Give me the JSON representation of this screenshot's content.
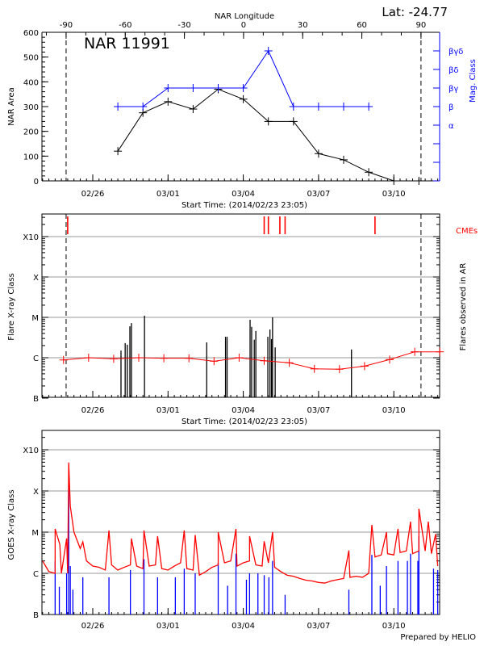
{
  "footer": "Prepared by HELIO",
  "colors": {
    "area": "#000000",
    "mag_class": "#0000ff",
    "cme": "#ff0000",
    "goes_long": "#ff0000",
    "goes_short": "#0000ff",
    "flare": "#000000",
    "background": "#ff0000",
    "grid": "#999999"
  },
  "chart_data": [
    {
      "type": "line",
      "title": "NAR 11991",
      "subtitle": "Lat: -24.77",
      "top_xlabel": "NAR Longitude",
      "top_xticks": [
        "-90",
        "-60",
        "-30",
        "0",
        "30",
        "60",
        "90"
      ],
      "xlabel": "Start Time: (2014/02/23 23:05)",
      "xticks": [
        "02/26",
        "03/01",
        "03/04",
        "03/07",
        "03/10"
      ],
      "limb_dates": [
        "2014-02-24 22:30",
        "2014-03-11 02:00"
      ],
      "ylabel": "NAR Area",
      "ylim": [
        0,
        600
      ],
      "yticks": [
        "0",
        "100",
        "200",
        "300",
        "400",
        "500",
        "600"
      ],
      "y2label": "Mag. Class",
      "y2ticks": [
        "",
        "",
        "",
        "α",
        "β",
        "βγ",
        "βδ",
        "βγδ"
      ],
      "area": {
        "x": [
          "2014-02-27",
          "2014-02-28",
          "2014-03-01",
          "2014-03-02",
          "2014-03-03",
          "2014-03-04",
          "2014-03-05",
          "2014-03-06",
          "2014-03-07",
          "2014-03-08",
          "2014-03-09",
          "2014-03-10",
          "2014-03-11"
        ],
        "values": [
          120,
          275,
          320,
          290,
          370,
          330,
          240,
          240,
          110,
          85,
          35,
          0,
          0
        ]
      },
      "mag_class": {
        "x": [
          "2014-02-27",
          "2014-02-28",
          "2014-03-01",
          "2014-03-02",
          "2014-03-03",
          "2014-03-04",
          "2014-03-05",
          "2014-03-06",
          "2014-03-07",
          "2014-03-08",
          "2014-03-09"
        ],
        "values": [
          "β",
          "β",
          "βγ",
          "βγ",
          "βγ",
          "βγ",
          "βγδ",
          "β",
          "β",
          "β",
          "β"
        ]
      }
    },
    {
      "type": "bar",
      "xlabel": "Start Time: (2014/02/23 23:05)",
      "xticks": [
        "02/26",
        "03/01",
        "03/04",
        "03/07",
        "03/10"
      ],
      "ylabel": "Flare X-ray Class",
      "y2label": "Flares observed in AR",
      "cme_label": "CMEs",
      "yticks": [
        {
          "label": "B",
          "class": "B1"
        },
        {
          "label": "C",
          "class": "C1"
        },
        {
          "label": "M",
          "class": "M1"
        },
        {
          "label": "X",
          "class": "X1"
        },
        {
          "label": "X10",
          "class": "X10"
        }
      ],
      "grid": true,
      "flares": [
        [
          "2014-02-27 03:00",
          "C1.5"
        ],
        [
          "2014-02-27 07:00",
          "C2.3"
        ],
        [
          "2014-02-27 09:00",
          "C2.1"
        ],
        [
          "2014-02-27 11:30",
          "C6.0"
        ],
        [
          "2014-02-27 13:00",
          "C7.2"
        ],
        [
          "2014-02-28 01:30",
          "M1.1"
        ],
        [
          "2014-03-02 13:00",
          "C2.4"
        ],
        [
          "2014-03-03 07:00",
          "C3.3"
        ],
        [
          "2014-03-03 08:30",
          "C3.3"
        ],
        [
          "2014-03-04 06:30",
          "C8.7"
        ],
        [
          "2014-03-04 08:00",
          "C5.8"
        ],
        [
          "2014-03-04 10:30",
          "C2.8"
        ],
        [
          "2014-03-04 12:00",
          "C4.6"
        ],
        [
          "2014-03-04 23:30",
          "C3.3"
        ],
        [
          "2014-03-05 01:30",
          "C5.0"
        ],
        [
          "2014-03-05 03:00",
          "C2.9"
        ],
        [
          "2014-03-05 04:00",
          "M1.0"
        ],
        [
          "2014-03-05 06:30",
          "C1.8"
        ],
        [
          "2014-03-08 07:30",
          "C1.6"
        ]
      ],
      "cmes": [
        "2014-02-25 00:00",
        "2014-03-04 20:00",
        "2014-03-05 00:00",
        "2014-03-05 11:00",
        "2014-03-05 16:00",
        "2014-03-09 06:00"
      ],
      "background": {
        "x": [
          "2014-02-24 20:00",
          "2014-02-25 20:00",
          "2014-02-26 20:00",
          "2014-02-27 20:00",
          "2014-02-28 20:00",
          "2014-03-01 20:00",
          "2014-03-02 20:00",
          "2014-03-03 20:00",
          "2014-03-04 20:00",
          "2014-03-05 20:00",
          "2014-03-06 20:00",
          "2014-03-07 20:00",
          "2014-03-08 20:00",
          "2014-03-09 20:00",
          "2014-03-10 20:00",
          "2014-03-11 20:00"
        ],
        "values": [
          "B8.8",
          "C1.0",
          "B9.4",
          "C1.0",
          "B9.7",
          "B9.7",
          "B8.2",
          "C1.0",
          "B8.4",
          "B7.5",
          "B5.3",
          "B5.2",
          "B6.2",
          "B9.0",
          "C1.4",
          "C1.4"
        ]
      }
    },
    {
      "type": "line",
      "xticks": [
        "02/26",
        "03/01",
        "03/04",
        "03/07",
        "03/10"
      ],
      "ylabel": "GOES X-ray Class",
      "yticks": [
        {
          "label": "B",
          "class": "B1"
        },
        {
          "label": "C",
          "class": "C1"
        },
        {
          "label": "M",
          "class": "M1"
        },
        {
          "label": "X",
          "class": "X1"
        },
        {
          "label": "X10",
          "class": "X10"
        }
      ],
      "grid": true,
      "long_channel": {
        "start": "2014-02-24 00:00",
        "step_hours": 6,
        "values": [
          "C2.0",
          "C1.1",
          "C1.0",
          "C1.0",
          "C1.0",
          "M1.0",
          "C4.0",
          "C2.0",
          "C1.5",
          "C1.4",
          "C1.2",
          "C1.6",
          "C1.2",
          "C1.4",
          "C1.6",
          "C1.5",
          "C1.3",
          "C1.5",
          "C1.6",
          "C1.3",
          "C1.2",
          "C1.5",
          "C1.8",
          "C1.3",
          "C1.2",
          "B9.0",
          "C1.1",
          "C1.4",
          "C1.6",
          "C1.8",
          "C2.0",
          "C1.5",
          "C1.8",
          "C2.0",
          "C1.6",
          "C1.5",
          "C1.8",
          "C1.4",
          "C1.1",
          "B9.0",
          "B8.5",
          "B7.5",
          "B6.8",
          "B6.5",
          "B6.0",
          "B5.8",
          "B6.5",
          "B7.0",
          "B7.5",
          "B8.0",
          "B8.5",
          "B8.0",
          "C1.0",
          "C2.5",
          "C2.8",
          "C3.0",
          "C2.8",
          "C3.2",
          "C3.5",
          "C3.0",
          "C3.5",
          "C3.5",
          "C3.0",
          "C1.5"
        ],
        "peaks": [
          [
            "2014-02-24 12:00",
            "M1.2"
          ],
          [
            "2014-02-24 16:30",
            "C5.0"
          ],
          [
            "2014-02-24 23:00",
            "C7.0"
          ],
          [
            "2014-02-25 01:00",
            "X4.9"
          ],
          [
            "2014-02-25 02:30",
            "M4.3"
          ],
          [
            "2014-02-25 14:30",
            "C5.8"
          ],
          [
            "2014-02-26 15:30",
            "M1.1"
          ],
          [
            "2014-02-27 13:00",
            "C7.0"
          ],
          [
            "2014-02-28 01:00",
            "M1.1"
          ],
          [
            "2014-02-28 14:00",
            "C8.0"
          ],
          [
            "2014-03-01 15:30",
            "M1.1"
          ],
          [
            "2014-03-02 02:00",
            "C8.5"
          ],
          [
            "2014-03-03 00:00",
            "M1.0"
          ],
          [
            "2014-03-03 17:00",
            "M1.2"
          ],
          [
            "2014-03-04 06:00",
            "C8.0"
          ],
          [
            "2014-03-04 20:00",
            "C6.0"
          ],
          [
            "2014-03-05 04:00",
            "M1.0"
          ],
          [
            "2014-03-08 05:00",
            "C3.6"
          ],
          [
            "2014-03-09 03:00",
            "M1.5"
          ],
          [
            "2014-03-09 17:00",
            "M1.0"
          ],
          [
            "2014-03-10 04:00",
            "M1.2"
          ],
          [
            "2014-03-10 16:00",
            "M1.8"
          ],
          [
            "2014-03-11 00:00",
            "M3.7"
          ],
          [
            "2014-03-11 09:00",
            "M1.8"
          ],
          [
            "2014-03-11 16:00",
            "C9.0"
          ]
        ]
      },
      "short_channel": [
        [
          "2014-02-24 12:00",
          "C2.0"
        ],
        [
          "2014-02-24 16:00",
          "B4.7"
        ],
        [
          "2014-02-24 23:00",
          "C1.0"
        ],
        [
          "2014-02-25 01:00",
          "X2.0"
        ],
        [
          "2014-02-25 02:30",
          "C1.5"
        ],
        [
          "2014-02-25 05:00",
          "B4.0"
        ],
        [
          "2014-02-25 14:30",
          "B8.0"
        ],
        [
          "2014-02-26 15:30",
          "B8.0"
        ],
        [
          "2014-02-27 12:00",
          "C1.2"
        ],
        [
          "2014-02-28 01:00",
          "C2.2"
        ],
        [
          "2014-02-28 14:00",
          "B8.0"
        ],
        [
          "2014-03-01 07:00",
          "B8.0"
        ],
        [
          "2014-03-01 15:30",
          "C1.3"
        ],
        [
          "2014-03-02 02:00",
          "C1.0"
        ],
        [
          "2014-03-03 00:00",
          "C1.8"
        ],
        [
          "2014-03-03 09:00",
          "B5.0"
        ],
        [
          "2014-03-03 17:00",
          "C3.0"
        ],
        [
          "2014-03-04 03:00",
          "B7.0"
        ],
        [
          "2014-03-04 06:00",
          "C1.0"
        ],
        [
          "2014-03-04 14:00",
          "C1.0"
        ],
        [
          "2014-03-04 20:00",
          "B9.0"
        ],
        [
          "2014-03-05 00:30",
          "B8.0"
        ],
        [
          "2014-03-05 04:00",
          "C2.0"
        ],
        [
          "2014-03-05 16:00",
          "B3.0"
        ],
        [
          "2014-03-08 05:00",
          "B4.0"
        ],
        [
          "2014-03-09 03:00",
          "C2.8"
        ],
        [
          "2014-03-09 11:00",
          "B5.0"
        ],
        [
          "2014-03-09 17:00",
          "C1.5"
        ],
        [
          "2014-03-10 04:00",
          "C2.0"
        ],
        [
          "2014-03-10 13:00",
          "C2.0"
        ],
        [
          "2014-03-10 16:00",
          "C3.0"
        ],
        [
          "2014-03-10 23:00",
          "C2.0"
        ],
        [
          "2014-03-11 00:00",
          "C8.0"
        ],
        [
          "2014-03-11 14:00",
          "C1.3"
        ],
        [
          "2014-03-11 18:00",
          "C1.2"
        ]
      ]
    }
  ]
}
